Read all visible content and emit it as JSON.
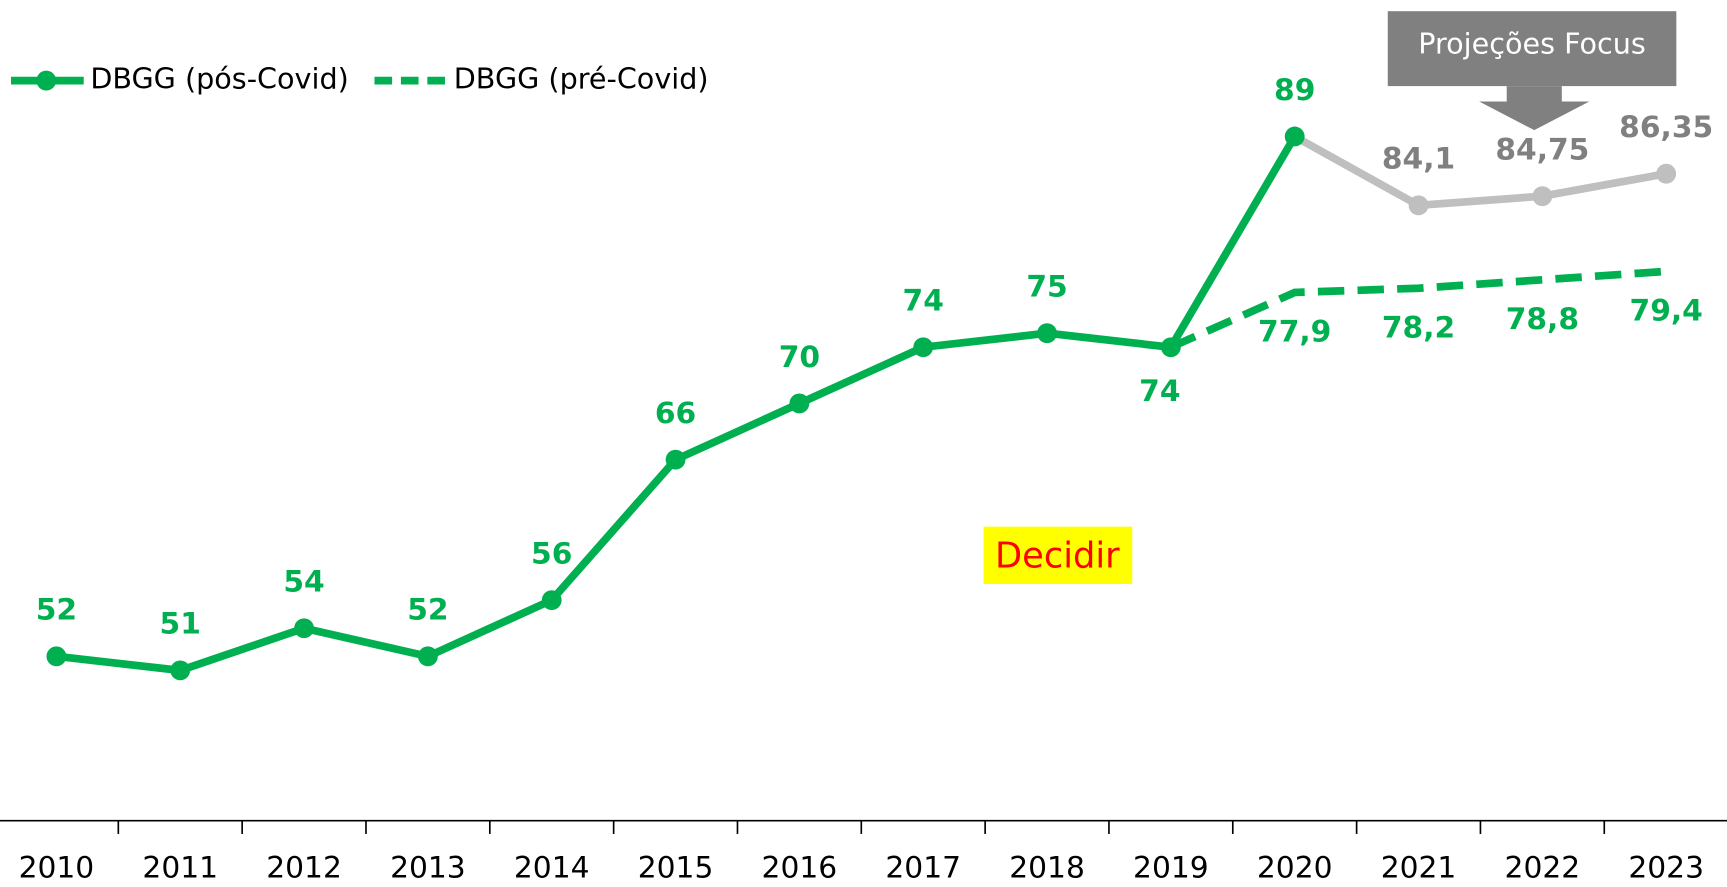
{
  "chart_data": {
    "type": "line",
    "categories": [
      "2010",
      "2011",
      "2012",
      "2013",
      "2014",
      "2015",
      "2016",
      "2017",
      "2018",
      "2019",
      "2020",
      "2021",
      "2022",
      "2023"
    ],
    "series": [
      {
        "name": "DBGG (pós-Covid)",
        "color": "#00b050",
        "style": "solid",
        "values": [
          52,
          51,
          54,
          52,
          56,
          66,
          70,
          74,
          75,
          74,
          89,
          84.1,
          84.75,
          86.35
        ],
        "value_labels": [
          "52",
          "51",
          "54",
          "52",
          "56",
          "66",
          "70",
          "74",
          "75",
          "74",
          "89",
          "84,1",
          "84,75",
          "86,35"
        ]
      },
      {
        "name": "DBGG (pré-Covid)",
        "color": "#00b050",
        "style": "dashed",
        "values": [
          null,
          null,
          null,
          null,
          null,
          null,
          null,
          null,
          null,
          74,
          77.9,
          78.2,
          78.8,
          79.4
        ],
        "value_labels": [
          null,
          null,
          null,
          null,
          null,
          null,
          null,
          null,
          null,
          null,
          "77,9",
          "78,2",
          "78,8",
          "79,4"
        ]
      }
    ],
    "projection": {
      "label": "Projeções Focus",
      "from": "2020",
      "color": "#bfbfbf",
      "label_color": "#808080"
    },
    "annotations": [
      {
        "text": "Decidir"
      }
    ],
    "ylim": [
      40.3,
      98.7
    ],
    "legend": "top-left"
  }
}
